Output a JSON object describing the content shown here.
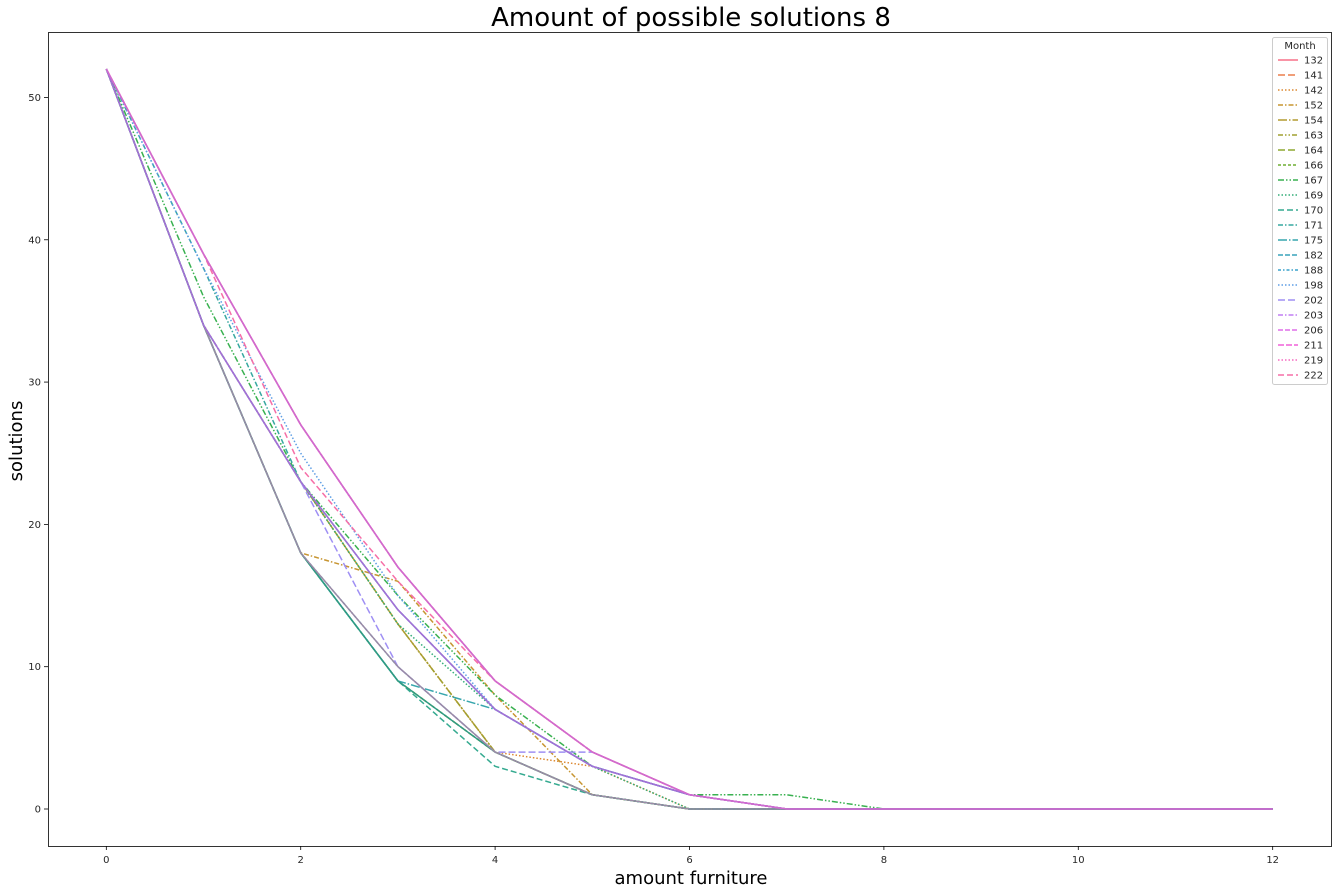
{
  "chart_data": {
    "type": "line",
    "title": "Amount of possible solutions 8",
    "xlabel": "amount furniture",
    "ylabel": "solutions",
    "xlim": [
      -0.6,
      12.6
    ],
    "ylim": [
      -2.6,
      54.6
    ],
    "xticks": [
      0,
      2,
      4,
      6,
      8,
      10,
      12
    ],
    "yticks": [
      0,
      10,
      20,
      30,
      40,
      50
    ],
    "grid": false,
    "legend": {
      "title": "Month",
      "placement": "top-right"
    },
    "x": [
      0,
      1,
      2,
      3,
      4,
      5,
      6,
      7,
      8,
      9,
      10,
      11,
      12
    ],
    "series": [
      {
        "name": "132",
        "color": "#f77189",
        "dash": "",
        "values": [
          52,
          39,
          27,
          17,
          9,
          4,
          1,
          0,
          0,
          0,
          0,
          0,
          0
        ]
      },
      {
        "name": "141",
        "color": "#ec7f4d",
        "dash": "7,3",
        "values": [
          52,
          39,
          27,
          17,
          9,
          4,
          1,
          0,
          0,
          0,
          0,
          0,
          0
        ]
      },
      {
        "name": "142",
        "color": "#dc8932",
        "dash": "1.5,2",
        "values": [
          52,
          34,
          23,
          13,
          4,
          3,
          0,
          0,
          0,
          0,
          0,
          0,
          0
        ]
      },
      {
        "name": "152",
        "color": "#c79531",
        "dash": "5,2,1.5,2",
        "values": [
          52,
          34,
          18,
          16,
          8,
          1,
          0,
          0,
          0,
          0,
          0,
          0,
          0
        ]
      },
      {
        "name": "154",
        "color": "#b39c31",
        "dash": "9,2,1.5,2",
        "values": [
          52,
          34,
          23,
          13,
          4,
          1,
          0,
          0,
          0,
          0,
          0,
          0,
          0
        ]
      },
      {
        "name": "163",
        "color": "#a0a131",
        "dash": "5,2,1.5,2,1.5,2",
        "values": [
          52,
          34,
          23,
          13,
          4,
          1,
          0,
          0,
          0,
          0,
          0,
          0,
          0
        ]
      },
      {
        "name": "164",
        "color": "#8da831",
        "dash": "7,3",
        "values": [
          52,
          34,
          18,
          9,
          4,
          1,
          0,
          0,
          0,
          0,
          0,
          0,
          0
        ]
      },
      {
        "name": "166",
        "color": "#6fad32",
        "dash": "3,2",
        "values": [
          52,
          34,
          18,
          9,
          4,
          1,
          0,
          0,
          0,
          0,
          0,
          0,
          0
        ]
      },
      {
        "name": "167",
        "color": "#39b150",
        "dash": "6,2,1.5,2,1.5,2",
        "values": [
          52,
          36,
          23,
          15,
          8,
          3,
          1,
          1,
          0,
          0,
          0,
          0,
          0
        ]
      },
      {
        "name": "169",
        "color": "#34ad79",
        "dash": "1.5,2",
        "values": [
          52,
          34,
          23,
          13,
          7,
          3,
          0,
          0,
          0,
          0,
          0,
          0,
          0
        ]
      },
      {
        "name": "170",
        "color": "#35aa90",
        "dash": "6,3",
        "values": [
          52,
          34,
          18,
          9,
          3,
          1,
          0,
          0,
          0,
          0,
          0,
          0,
          0
        ]
      },
      {
        "name": "171",
        "color": "#36a8a0",
        "dash": "5,2,1.5,2",
        "values": [
          52,
          38,
          23,
          14,
          7,
          3,
          1,
          0,
          0,
          0,
          0,
          0,
          0
        ]
      },
      {
        "name": "175",
        "color": "#37a6ad",
        "dash": "9,2,1.5,2",
        "values": [
          52,
          34,
          18,
          9,
          7,
          3,
          1,
          0,
          0,
          0,
          0,
          0,
          0
        ]
      },
      {
        "name": "182",
        "color": "#38a4bb",
        "dash": "5,2",
        "values": [
          52,
          34,
          23,
          14,
          7,
          3,
          1,
          0,
          0,
          0,
          0,
          0,
          0
        ]
      },
      {
        "name": "188",
        "color": "#3aa2cc",
        "dash": "3,2,1.5,2",
        "values": [
          52,
          34,
          18,
          10,
          4,
          1,
          0,
          0,
          0,
          0,
          0,
          0,
          0
        ]
      },
      {
        "name": "198",
        "color": "#5e9ee5",
        "dash": "1.5,2",
        "values": [
          52,
          38,
          25,
          15,
          7,
          3,
          1,
          0,
          0,
          0,
          0,
          0,
          0
        ]
      },
      {
        "name": "202",
        "color": "#9f8ff4",
        "dash": "7,3",
        "values": [
          52,
          34,
          23,
          10,
          4,
          4,
          1,
          0,
          0,
          0,
          0,
          0,
          0
        ]
      },
      {
        "name": "203",
        "color": "#c17ff4",
        "dash": "5,2,1.5,2",
        "values": [
          52,
          34,
          23,
          14,
          7,
          3,
          1,
          0,
          0,
          0,
          0,
          0,
          0
        ]
      },
      {
        "name": "206",
        "color": "#df6fe8",
        "dash": "5,2",
        "values": [
          52,
          39,
          27,
          17,
          9,
          4,
          1,
          0,
          0,
          0,
          0,
          0,
          0
        ]
      },
      {
        "name": "211",
        "color": "#f061d8",
        "dash": "6,2",
        "values": [
          52,
          39,
          27,
          17,
          9,
          4,
          1,
          0,
          0,
          0,
          0,
          0,
          0
        ]
      },
      {
        "name": "219",
        "color": "#f568c0",
        "dash": "1.5,2",
        "values": [
          52,
          39,
          27,
          17,
          9,
          4,
          1,
          0,
          0,
          0,
          0,
          0,
          0
        ]
      },
      {
        "name": "222",
        "color": "#f66ea7",
        "dash": "6,3",
        "values": [
          52,
          39,
          24,
          16,
          9,
          4,
          1,
          0,
          0,
          0,
          0,
          0,
          0
        ]
      }
    ],
    "overlay_lines": [
      {
        "color": "#2e9a86",
        "values": [
          52,
          34,
          18,
          9,
          4,
          1,
          0,
          0,
          0,
          0,
          0,
          0,
          0
        ]
      },
      {
        "color": "#9b8aa6",
        "values": [
          52,
          34,
          18,
          10,
          4,
          1,
          0,
          0,
          0,
          0,
          0,
          0,
          0
        ]
      },
      {
        "color": "#a36fd6",
        "values": [
          52,
          34,
          23,
          14,
          7,
          3,
          1,
          0,
          0,
          0,
          0,
          0,
          0
        ]
      },
      {
        "color": "#cf6bd0",
        "values": [
          52,
          39,
          27,
          17,
          9,
          4,
          1,
          0,
          0,
          0,
          0,
          0,
          0
        ]
      }
    ]
  }
}
